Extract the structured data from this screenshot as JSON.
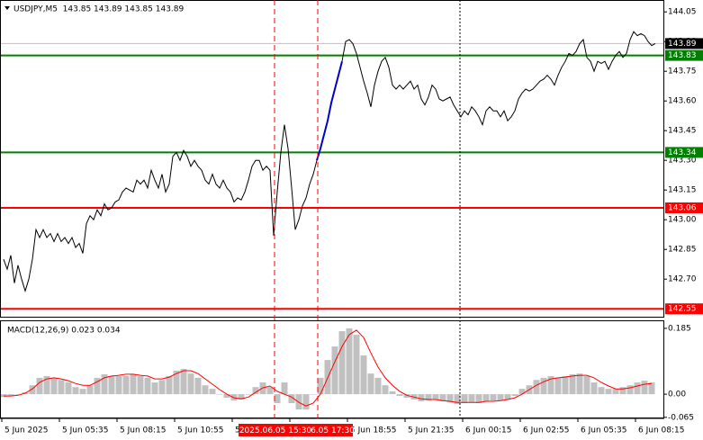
{
  "chart_data": [
    {
      "type": "line",
      "title": "USDJPY,M5  143.85 143.89 143.85 143.89",
      "ylim": [
        142.51,
        144.11
      ],
      "yticks": [
        144.05,
        {
          "value": 143.9,
          "label": "143.90"
        },
        143.75,
        {
          "value": 143.6,
          "label": "143.60"
        },
        143.45,
        {
          "value": 143.3,
          "label": "143.30"
        },
        143.15,
        {
          "value": 143,
          "label": "143.00"
        },
        142.85,
        {
          "value": 142.7,
          "label": "142.70"
        }
      ],
      "xtick_labels": [
        "5 Jun 2025",
        "5 Jun 05:35",
        "5 Jun 08:15",
        "5 Jun 10:55",
        "5 Jun 13:35",
        null,
        "5 Jun 18:55",
        "5 Jun 21:35",
        "6 Jun 00:15",
        "6 Jun 02:55",
        "6 Jun 05:35",
        "6 Jun 08:15"
      ],
      "series": [
        {
          "color": "#000000",
          "values": [
            142.8,
            142.75,
            142.82,
            142.68,
            142.77,
            142.7,
            142.64,
            142.7,
            142.8,
            142.95,
            142.91,
            142.95,
            142.91,
            142.93,
            142.89,
            142.93,
            142.89,
            142.91,
            142.88,
            142.91,
            142.86,
            142.88,
            142.83,
            142.98,
            143.02,
            143.0,
            143.05,
            143.02,
            143.08,
            143.05,
            143.06,
            143.09,
            143.1,
            143.14,
            143.16,
            143.15,
            143.14,
            143.2,
            143.18,
            143.2,
            143.16,
            143.25,
            143.2,
            143.16,
            143.23,
            143.14,
            143.18,
            143.32,
            143.34,
            143.3,
            143.35,
            143.32,
            143.27,
            143.3,
            143.27,
            143.25,
            143.2,
            143.18,
            143.23,
            143.18,
            143.16,
            143.2,
            143.16,
            143.14,
            143.09,
            143.11,
            143.1,
            143.14,
            143.2,
            143.27,
            143.3,
            143.3,
            143.25,
            143.27,
            143.25,
            142.92,
            143.14,
            143.34,
            143.48,
            143.36,
            143.16,
            142.95,
            143.0,
            143.07,
            143.11,
            143.18,
            143.23,
            143.3,
            null,
            null,
            null,
            null,
            null,
            null,
            143.8,
            143.9,
            143.91,
            143.89,
            143.84,
            143.77,
            143.7,
            143.64,
            143.57,
            143.68,
            143.75,
            143.8,
            143.82,
            143.77,
            143.68,
            143.66,
            143.68,
            143.66,
            143.68,
            143.7,
            143.66,
            143.68,
            143.61,
            143.58,
            143.62,
            143.68,
            143.66,
            143.61,
            143.6,
            143.61,
            143.62,
            143.58,
            143.55,
            143.52,
            143.55,
            143.53,
            143.57,
            143.55,
            143.52,
            143.48,
            143.55,
            143.57,
            143.55,
            143.55,
            143.52,
            143.55,
            143.5,
            143.52,
            143.55,
            143.61,
            143.64,
            143.66,
            143.65,
            143.66,
            143.68,
            143.7,
            143.71,
            143.73,
            143.71,
            143.68,
            143.73,
            143.77,
            143.8,
            143.84,
            143.83,
            143.85,
            143.89,
            143.91,
            143.82,
            143.8,
            143.75,
            143.8,
            143.79,
            143.8,
            143.76,
            143.8,
            143.83,
            143.85,
            143.82,
            143.84,
            143.91,
            143.95,
            143.93,
            143.94,
            143.93,
            143.9,
            143.88,
            143.89
          ]
        },
        {
          "color": "#0000cc",
          "values": [
            null,
            null,
            null,
            null,
            null,
            null,
            null,
            null,
            null,
            null,
            null,
            null,
            null,
            null,
            null,
            null,
            null,
            null,
            null,
            null,
            null,
            null,
            null,
            null,
            null,
            null,
            null,
            null,
            null,
            null,
            null,
            null,
            null,
            null,
            null,
            null,
            null,
            null,
            null,
            null,
            null,
            null,
            null,
            null,
            null,
            null,
            null,
            null,
            null,
            null,
            null,
            null,
            null,
            null,
            null,
            null,
            null,
            null,
            null,
            null,
            null,
            null,
            null,
            null,
            null,
            null,
            null,
            null,
            null,
            null,
            null,
            null,
            null,
            null,
            null,
            null,
            null,
            null,
            null,
            null,
            null,
            null,
            null,
            null,
            null,
            null,
            null,
            143.3,
            143.36,
            143.43,
            143.5,
            143.59,
            143.66,
            143.73,
            143.8,
            null,
            null,
            null,
            null,
            null,
            null,
            null,
            null,
            null,
            null,
            null,
            null,
            null,
            null,
            null,
            null,
            null,
            null,
            null,
            null,
            null,
            null,
            null,
            null,
            null,
            null,
            null,
            null,
            null,
            null,
            null,
            null,
            null,
            null,
            null,
            null,
            null,
            null,
            null,
            null,
            null,
            null,
            null,
            null,
            null,
            null,
            null,
            null,
            null,
            null,
            null,
            null,
            null,
            null,
            null,
            null,
            null,
            null,
            null,
            null,
            null,
            null,
            null,
            null,
            null,
            null,
            null,
            null,
            null,
            null,
            null,
            null,
            null,
            null,
            null,
            null,
            null,
            null,
            null,
            null,
            null,
            null,
            null,
            null,
            null,
            null,
            null
          ]
        }
      ],
      "levels": [
        {
          "value": 143.89,
          "color": "#000000",
          "line_color": "#c0c0c0"
        },
        {
          "value": 143.83,
          "color": "#008000",
          "line_color": "#008000"
        },
        {
          "value": 143.34,
          "color": "#008000",
          "line_color": "#008000"
        },
        {
          "value": 143.06,
          "color": "#ff0000",
          "line_color": "#ff0000"
        },
        {
          "value": 142.55,
          "color": "#ff0000",
          "line_color": "#ff0000"
        }
      ],
      "markers": [
        "2025.06.05 15:30",
        "6.05 17:30"
      ]
    },
    {
      "type": "macd",
      "title": "MACD(12,26,9) 0.023 0.034",
      "ylim": [
        -0.068,
        0.205
      ],
      "yticks": [
        0.185,
        {
          "value": 0,
          "label": "0.00"
        },
        -0.065
      ],
      "histogram": {
        "color": "#c0c0c0",
        "values": [
          -0.008,
          -0.005,
          0.0,
          0.005,
          0.025,
          0.046,
          0.051,
          0.046,
          0.04,
          0.033,
          0.02,
          0.015,
          0.025,
          0.046,
          0.056,
          0.051,
          0.051,
          0.051,
          0.056,
          0.051,
          0.046,
          0.033,
          0.04,
          0.051,
          0.066,
          0.071,
          0.058,
          0.046,
          0.025,
          0.015,
          0.0,
          -0.01,
          -0.018,
          -0.015,
          0.0,
          0.02,
          0.033,
          0.02,
          -0.025,
          0.033,
          -0.025,
          -0.043,
          -0.043,
          0.0,
          0.046,
          0.096,
          0.134,
          0.177,
          0.185,
          0.167,
          0.109,
          0.058,
          0.046,
          0.025,
          0.008,
          -0.005,
          -0.01,
          -0.015,
          -0.02,
          -0.018,
          -0.015,
          -0.02,
          -0.023,
          -0.028,
          -0.025,
          -0.023,
          -0.025,
          -0.02,
          -0.018,
          -0.018,
          -0.015,
          -0.005,
          0.015,
          0.025,
          0.04,
          0.046,
          0.051,
          0.046,
          0.051,
          0.056,
          0.058,
          0.051,
          0.033,
          0.02,
          0.015,
          0.015,
          0.02,
          0.025,
          0.033,
          0.038,
          0.033
        ]
      },
      "signal": {
        "color": "#ff0000",
        "values": [
          -0.005,
          -0.005,
          -0.003,
          0.003,
          0.015,
          0.033,
          0.043,
          0.046,
          0.043,
          0.038,
          0.03,
          0.025,
          0.025,
          0.035,
          0.046,
          0.051,
          0.053,
          0.056,
          0.056,
          0.053,
          0.051,
          0.043,
          0.043,
          0.048,
          0.058,
          0.066,
          0.066,
          0.058,
          0.043,
          0.028,
          0.013,
          0.0,
          -0.01,
          -0.013,
          -0.008,
          0.005,
          0.018,
          0.023,
          0.008,
          0.0,
          -0.008,
          -0.023,
          -0.033,
          -0.025,
          0.0,
          0.046,
          0.091,
          0.134,
          0.167,
          0.18,
          0.159,
          0.116,
          0.076,
          0.046,
          0.025,
          0.008,
          -0.003,
          -0.008,
          -0.013,
          -0.015,
          -0.015,
          -0.018,
          -0.02,
          -0.023,
          -0.023,
          -0.023,
          -0.023,
          -0.02,
          -0.02,
          -0.018,
          -0.015,
          -0.01,
          0.0,
          0.013,
          0.025,
          0.035,
          0.043,
          0.046,
          0.048,
          0.051,
          0.053,
          0.053,
          0.046,
          0.033,
          0.023,
          0.015,
          0.015,
          0.018,
          0.023,
          0.028,
          0.03
        ]
      }
    }
  ]
}
